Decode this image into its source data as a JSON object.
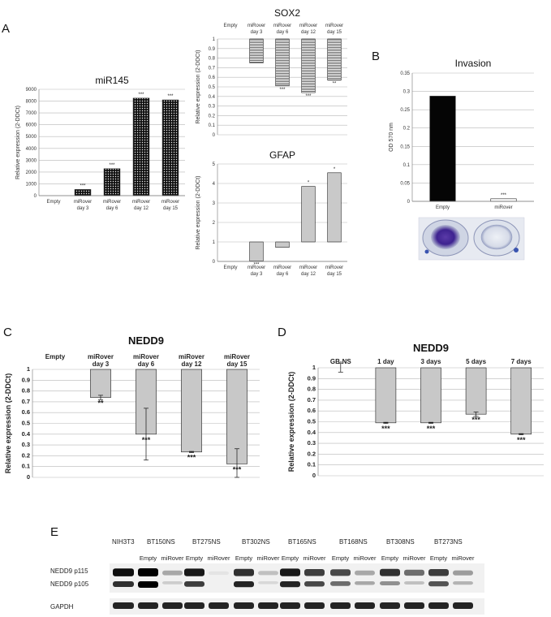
{
  "panel_labels": [
    "A",
    "B",
    "C",
    "D",
    "E"
  ],
  "chart_data": [
    {
      "id": "mir145",
      "type": "bar",
      "title": "miR145",
      "ylabel": "Relative expression (2-DDCt)",
      "categories": [
        "Empty",
        "miRover day 3",
        "miRover day 6",
        "miRover day 12",
        "miRover day 15"
      ],
      "category_lines": [
        [
          "Empty"
        ],
        [
          "miRover",
          "day 3"
        ],
        [
          "miRover",
          "day 6"
        ],
        [
          "miRover",
          "day 12"
        ],
        [
          "miRover",
          "day 15"
        ]
      ],
      "values": [
        0,
        520,
        2280,
        8250,
        8100
      ],
      "baseline": 0,
      "ylim": [
        0,
        9000
      ],
      "yticks": [
        0,
        1000,
        2000,
        3000,
        4000,
        5000,
        6000,
        7000,
        8000,
        9000
      ],
      "significance": [
        "",
        "***",
        "***",
        "***",
        "***"
      ],
      "pattern": "dots-dark",
      "grid": true
    },
    {
      "id": "sox2",
      "type": "bar",
      "title": "SOX2",
      "ylabel": "Relative expression (2-DDCt)",
      "categories": [
        "Empty",
        "miRover day 3",
        "miRover day 6",
        "miRover day 12",
        "miRover day 15"
      ],
      "category_lines": [
        [
          "Empty"
        ],
        [
          "miRover",
          "day 3"
        ],
        [
          "miRover",
          "day 6"
        ],
        [
          "miRover",
          "day 12"
        ],
        [
          "miRover",
          "day 15"
        ]
      ],
      "categories_position": "top",
      "values": [
        1,
        0.75,
        0.51,
        0.44,
        0.57
      ],
      "baseline": 1,
      "ylim": [
        0,
        1
      ],
      "yticks": [
        0,
        0.1,
        0.2,
        0.3,
        0.4,
        0.5,
        0.6,
        0.7,
        0.8,
        0.9,
        1
      ],
      "significance": [
        "",
        "",
        "***",
        "***",
        "**"
      ],
      "pattern": "horizontal-stripes",
      "grid": true
    },
    {
      "id": "gfap",
      "type": "bar",
      "title": "GFAP",
      "ylabel": "Relative expression (2-DDCt)",
      "categories": [
        "Empty",
        "miRover day 3",
        "miRover day 6",
        "miRover day 12",
        "miRover day 15"
      ],
      "category_lines": [
        [
          "Empty"
        ],
        [
          "miRover",
          "day 3"
        ],
        [
          "miRover",
          "day 6"
        ],
        [
          "miRover",
          "day 12"
        ],
        [
          "miRover",
          "day 15"
        ]
      ],
      "values": [
        1,
        0.02,
        0.72,
        3.85,
        4.55
      ],
      "baseline": 1,
      "ylim": [
        0,
        5
      ],
      "yticks": [
        0,
        1,
        2,
        3,
        4,
        5
      ],
      "significance": [
        "",
        "***",
        "",
        "*",
        "*"
      ],
      "pattern": "light-grey",
      "grid": true
    },
    {
      "id": "invasion",
      "type": "bar",
      "title": "Invasion",
      "ylabel": "OD 570 nm",
      "categories": [
        "Empty",
        "miRover"
      ],
      "category_lines": [
        [
          "Empty"
        ],
        [
          "miRover"
        ]
      ],
      "values": [
        0.287,
        0.007
      ],
      "baseline": 0,
      "ylim": [
        0,
        0.35
      ],
      "yticks": [
        0,
        0.05,
        0.1,
        0.15,
        0.2,
        0.25,
        0.3,
        0.35
      ],
      "significance": [
        "",
        "***"
      ],
      "colors": [
        "#050505",
        "#ffffff"
      ],
      "grid": true
    },
    {
      "id": "nedd9_c",
      "type": "bar",
      "title": "NEDD9",
      "ylabel": "Relative expression (2-DDCt)",
      "categories": [
        "Empty",
        "miRover day 3",
        "miRover day 6",
        "miRover day 12",
        "miRover day 15"
      ],
      "category_lines": [
        [
          "Empty"
        ],
        [
          "miRover",
          "day 3"
        ],
        [
          "miRover",
          "day 6"
        ],
        [
          "miRover",
          "day 12"
        ],
        [
          "miRover",
          "day 15"
        ]
      ],
      "categories_position": "top",
      "values": [
        1,
        0.74,
        0.4,
        0.235,
        0.125
      ],
      "errors": [
        0,
        0.02,
        0.24,
        0.005,
        0.14
      ],
      "baseline": 1,
      "ylim": [
        0,
        1
      ],
      "yticks": [
        0,
        0.1,
        0.2,
        0.3,
        0.4,
        0.5,
        0.6,
        0.7,
        0.8,
        0.9,
        1
      ],
      "significance": [
        "",
        "**",
        "***",
        "***",
        "***"
      ],
      "grid": true
    },
    {
      "id": "nedd9_d",
      "type": "bar",
      "title": "NEDD9",
      "ylabel": "Relative expression (2-DDCt)",
      "categories": [
        "GB-NS",
        "1 day",
        "3 days",
        "5 days",
        "7 days"
      ],
      "category_lines": [
        [
          "GB-NS"
        ],
        [
          "1 day"
        ],
        [
          "3 days"
        ],
        [
          "5 days"
        ],
        [
          "7 days"
        ]
      ],
      "categories_position": "top",
      "values": [
        1,
        0.49,
        0.49,
        0.57,
        0.385
      ],
      "errors": [
        0.04,
        0.005,
        0.005,
        0.02,
        0.005
      ],
      "baseline": 1,
      "ylim": [
        0,
        1
      ],
      "yticks": [
        0,
        0.1,
        0.2,
        0.3,
        0.4,
        0.5,
        0.6,
        0.7,
        0.8,
        0.9,
        1
      ],
      "significance": [
        "",
        "***",
        "***",
        "***",
        "***"
      ],
      "grid": true
    }
  ],
  "western_blot": {
    "cell_lines": [
      "NIH3T3",
      "BT150NS",
      "BT275NS",
      "BT302NS",
      "BT165NS",
      "BT168NS",
      "BT308NS",
      "BT273NS"
    ],
    "lane_labels": [
      "Empty",
      "miRover"
    ],
    "row_labels": [
      "NEDD9 p115",
      "NEDD9 p105",
      "GAPDH"
    ]
  }
}
